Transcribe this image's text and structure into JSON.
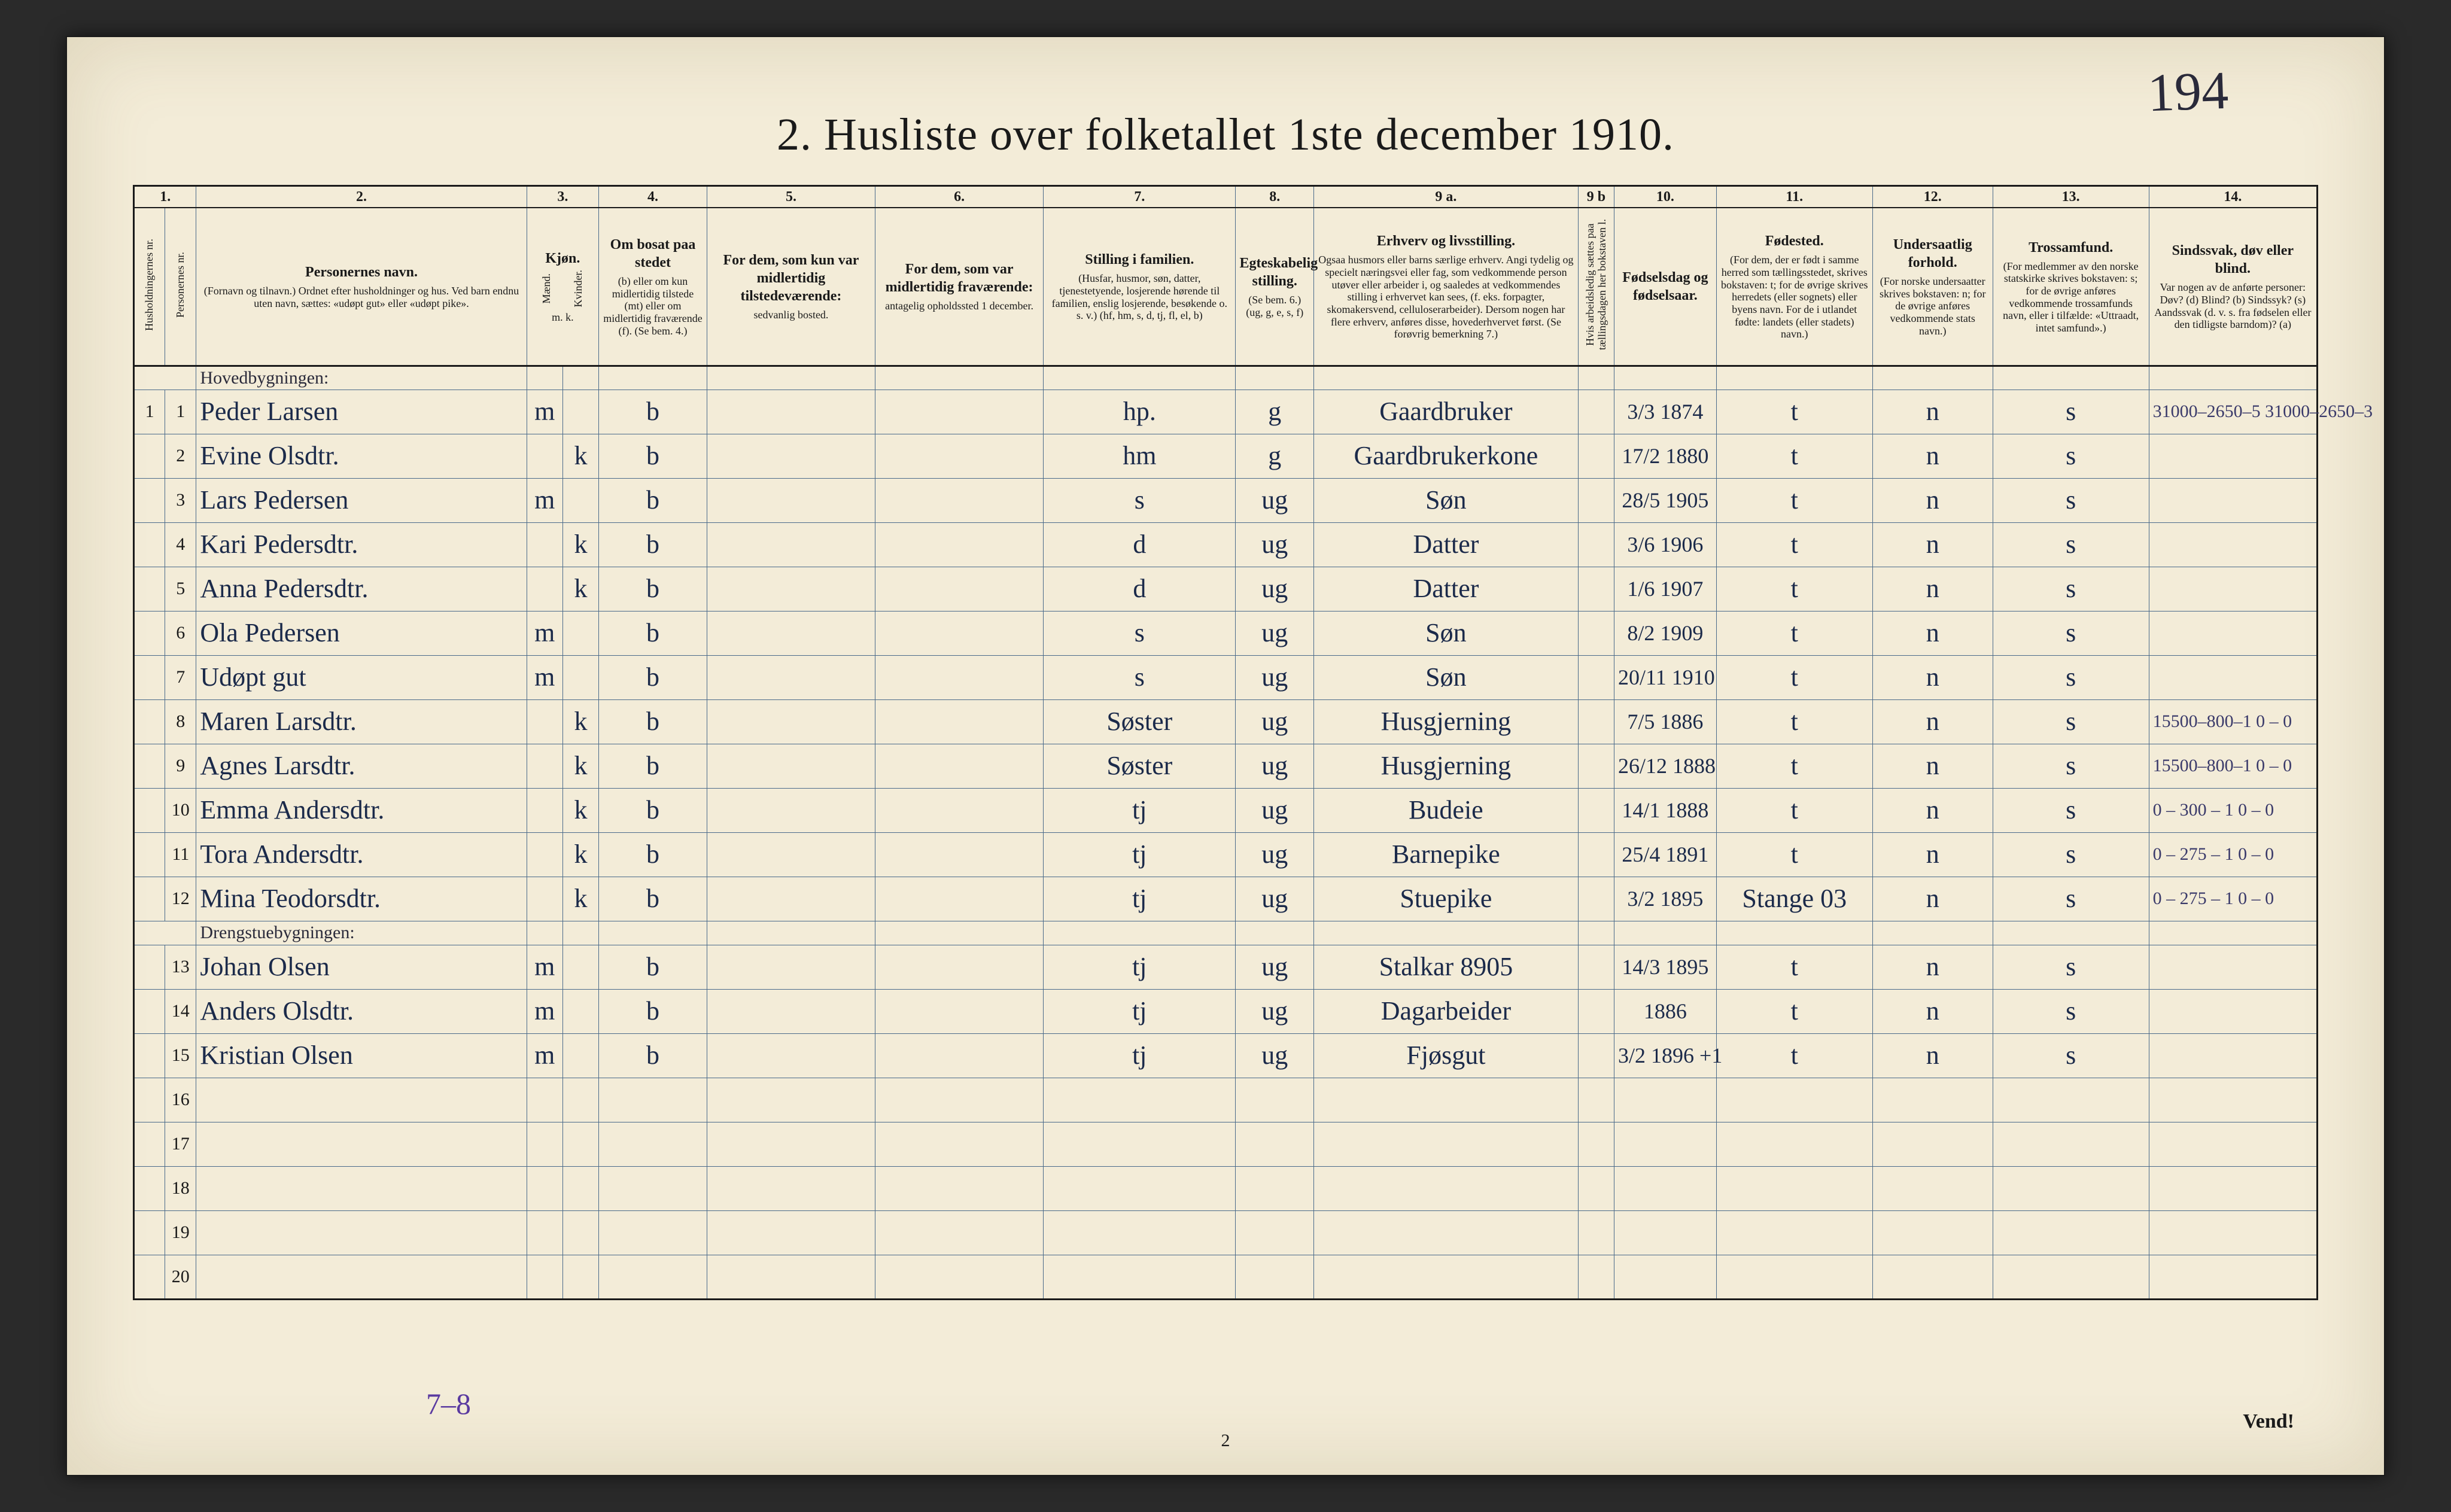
{
  "page": {
    "title": "2.  Husliste over folketallet 1ste december 1910.",
    "handwritten_page_number": "194",
    "footer_page_number": "2",
    "footer_right": "Vend!",
    "bottom_margin_note": "7–8"
  },
  "colors": {
    "paper_bg": "#f3ecd8",
    "rule_line": "#4a6a8a",
    "ink_print": "#1a1a1a",
    "ink_hand": "#1b2a4a",
    "pencil": "#3a3a6a",
    "purple_pencil": "#5a3aa0"
  },
  "columns": {
    "numbers": [
      "1.",
      "2.",
      "3.",
      "4.",
      "5.",
      "6.",
      "7.",
      "8.",
      "9 a.",
      "9 b",
      "10.",
      "11.",
      "12.",
      "13.",
      "14."
    ],
    "headers": {
      "c1a": "Husholdningernes nr.",
      "c1b": "Personernes nr.",
      "c2_main": "Personernes navn.",
      "c2_sub": "(Fornavn og tilnavn.)\nOrdnet efter husholdninger og hus.\nVed barn endnu uten navn, sættes: «udøpt gut» eller «udøpt pike».",
      "c3_main": "Kjøn.",
      "c3_sub_m": "Mænd.",
      "c3_sub_k": "Kvinder.",
      "c3_foot": "m.  k.",
      "c4_main": "Om bosat paa stedet",
      "c4_sub": "(b) eller om kun midlertidig tilstede (mt) eller om midlertidig fraværende (f). (Se bem. 4.)",
      "c5_main": "For dem, som kun var midlertidig tilstedeværende:",
      "c5_sub": "sedvanlig bosted.",
      "c6_main": "For dem, som var midlertidig fraværende:",
      "c6_sub": "antagelig opholdssted 1 december.",
      "c7_main": "Stilling i familien.",
      "c7_sub": "(Husfar, husmor, søn, datter, tjenestetyende, losjerende hørende til familien, enslig losjerende, besøkende o. s. v.) (hf, hm, s, d, tj, fl, el, b)",
      "c8_main": "Egteskabelig stilling.",
      "c8_sub": "(Se bem. 6.) (ug, g, e, s, f)",
      "c9a_main": "Erhverv og livsstilling.",
      "c9a_sub": "Ogsaa husmors eller barns særlige erhverv. Angi tydelig og specielt næringsvei eller fag, som vedkommende person utøver eller arbeider i, og saaledes at vedkommendes stilling i erhvervet kan sees, (f. eks. forpagter, skomakersvend, celluloserarbeider). Dersom nogen har flere erhverv, anføres disse, hovederhvervet først. (Se forøvrig bemerkning 7.)",
      "c9b_main": "Hvis arbeidsledig sættes paa tællingsdagen her bokstaven l.",
      "c10_main": "Fødselsdag og fødselsaar.",
      "c11_main": "Fødested.",
      "c11_sub": "(For dem, der er født i samme herred som tællingsstedet, skrives bokstaven: t; for de øvrige skrives herredets (eller sognets) eller byens navn. For de i utlandet fødte: landets (eller stadets) navn.)",
      "c12_main": "Undersaatlig forhold.",
      "c12_sub": "(For norske undersaatter skrives bokstaven: n; for de øvrige anføres vedkommende stats navn.)",
      "c13_main": "Trossamfund.",
      "c13_sub": "(For medlemmer av den norske statskirke skrives bokstaven: s; for de øvrige anføres vedkommende trossamfunds navn, eller i tilfælde: «Uttraadt, intet samfund».)",
      "c14_main": "Sindssvak, døv eller blind.",
      "c14_sub": "Var nogen av de anførte personer:\nDøv?  (d)\nBlind?  (b)\nSindssyk? (s)\nAandssvak (d. v. s. fra fødselen eller den tidligste barndom)? (a)"
    }
  },
  "heading_row_label": "Hovedbygningen:",
  "heading_row_label2": "Drengstuebygningen:",
  "rows": [
    {
      "hnr": "1",
      "pnr": "1",
      "name": "Peder Larsen",
      "m": "m",
      "k": "",
      "bosat": "b",
      "c5": "",
      "c6": "",
      "stilling": "hp.",
      "egte": "g",
      "erhverv": "Gaardbruker",
      "c9b": "",
      "fdato": "3/3 1874",
      "fsted": "t",
      "under": "n",
      "tros": "s",
      "c14": "",
      "rnote": "31000–2650–5\n31000–2650–3"
    },
    {
      "hnr": "",
      "pnr": "2",
      "name": "Evine Olsdtr.",
      "m": "",
      "k": "k",
      "bosat": "b",
      "c5": "",
      "c6": "",
      "stilling": "hm",
      "egte": "g",
      "erhverv": "Gaardbrukerkone",
      "c9b": "",
      "fdato": "17/2 1880",
      "fsted": "t",
      "under": "n",
      "tros": "s",
      "c14": "",
      "rnote": ""
    },
    {
      "hnr": "",
      "pnr": "3",
      "name": "Lars Pedersen",
      "m": "m",
      "k": "",
      "bosat": "b",
      "c5": "",
      "c6": "",
      "stilling": "s",
      "egte": "ug",
      "erhverv": "Søn",
      "c9b": "",
      "fdato": "28/5 1905",
      "fsted": "t",
      "under": "n",
      "tros": "s",
      "c14": "",
      "rnote": ""
    },
    {
      "hnr": "",
      "pnr": "4",
      "name": "Kari Pedersdtr.",
      "m": "",
      "k": "k",
      "bosat": "b",
      "c5": "",
      "c6": "",
      "stilling": "d",
      "egte": "ug",
      "erhverv": "Datter",
      "c9b": "",
      "fdato": "3/6 1906",
      "fsted": "t",
      "under": "n",
      "tros": "s",
      "c14": "",
      "rnote": ""
    },
    {
      "hnr": "",
      "pnr": "5",
      "name": "Anna Pedersdtr.",
      "m": "",
      "k": "k",
      "bosat": "b",
      "c5": "",
      "c6": "",
      "stilling": "d",
      "egte": "ug",
      "erhverv": "Datter",
      "c9b": "",
      "fdato": "1/6 1907",
      "fsted": "t",
      "under": "n",
      "tros": "s",
      "c14": "",
      "rnote": ""
    },
    {
      "hnr": "",
      "pnr": "6",
      "name": "Ola Pedersen",
      "m": "m",
      "k": "",
      "bosat": "b",
      "c5": "",
      "c6": "",
      "stilling": "s",
      "egte": "ug",
      "erhverv": "Søn",
      "c9b": "",
      "fdato": "8/2 1909",
      "fsted": "t",
      "under": "n",
      "tros": "s",
      "c14": "",
      "rnote": ""
    },
    {
      "hnr": "",
      "pnr": "7",
      "name": "Udøpt gut",
      "m": "m",
      "k": "",
      "bosat": "b",
      "c5": "",
      "c6": "",
      "stilling": "s",
      "egte": "ug",
      "erhverv": "Søn",
      "c9b": "",
      "fdato": "20/11 1910",
      "fsted": "t",
      "under": "n",
      "tros": "s",
      "c14": "",
      "rnote": ""
    },
    {
      "hnr": "",
      "pnr": "8",
      "name": "Maren Larsdtr.",
      "m": "",
      "k": "k",
      "bosat": "b",
      "c5": "",
      "c6": "",
      "stilling": "Søster",
      "egte": "ug",
      "erhverv": "Husgjerning",
      "c9b": "",
      "fdato": "7/5 1886",
      "fsted": "t",
      "under": "n",
      "tros": "s",
      "c14": "",
      "rnote": "15500–800–1\n0 – 0"
    },
    {
      "hnr": "",
      "pnr": "9",
      "name": "Agnes Larsdtr.",
      "m": "",
      "k": "k",
      "bosat": "b",
      "c5": "",
      "c6": "",
      "stilling": "Søster",
      "egte": "ug",
      "erhverv": "Husgjerning",
      "c9b": "",
      "fdato": "26/12 1888",
      "fsted": "t",
      "under": "n",
      "tros": "s",
      "c14": "",
      "rnote": "15500–800–1\n0 – 0"
    },
    {
      "hnr": "",
      "pnr": "10",
      "name": "Emma Andersdtr.",
      "m": "",
      "k": "k",
      "bosat": "b",
      "c5": "",
      "c6": "",
      "stilling": "tj",
      "egte": "ug",
      "erhverv": "Budeie",
      "c9b": "",
      "fdato": "14/1 1888",
      "fsted": "t",
      "under": "n",
      "tros": "s",
      "c14": "",
      "rnote": "0 – 300 – 1\n0 – 0"
    },
    {
      "hnr": "",
      "pnr": "11",
      "name": "Tora Andersdtr.",
      "m": "",
      "k": "k",
      "bosat": "b",
      "c5": "",
      "c6": "",
      "stilling": "tj",
      "egte": "ug",
      "erhverv": "Barnepike",
      "c9b": "",
      "fdato": "25/4 1891",
      "fsted": "t",
      "under": "n",
      "tros": "s",
      "c14": "",
      "rnote": "0 – 275 – 1\n0 – 0"
    },
    {
      "hnr": "",
      "pnr": "12",
      "name": "Mina Teodorsdtr.",
      "m": "",
      "k": "k",
      "bosat": "b",
      "c5": "",
      "c6": "",
      "stilling": "tj",
      "egte": "ug",
      "erhverv": "Stuepike",
      "c9b": "",
      "fdato": "3/2 1895",
      "fsted": "Stange 03",
      "under": "n",
      "tros": "s",
      "c14": "",
      "rnote": "0 – 275 – 1\n0 – 0"
    },
    {
      "hnr": "",
      "pnr": "13",
      "name": "Johan Olsen",
      "m": "m",
      "k": "",
      "bosat": "b",
      "c5": "",
      "c6": "",
      "stilling": "tj",
      "egte": "ug",
      "erhverv": "Stalkar  8905",
      "c9b": "",
      "fdato": "14/3 1895",
      "fsted": "t",
      "under": "n",
      "tros": "s",
      "c14": "",
      "rnote": ""
    },
    {
      "hnr": "",
      "pnr": "14",
      "name": "Anders Olsdtr.",
      "m": "m",
      "k": "",
      "bosat": "b",
      "c5": "",
      "c6": "",
      "stilling": "tj",
      "egte": "ug",
      "erhverv": "Dagarbeider",
      "c9b": "",
      "fdato": "1886",
      "fsted": "t",
      "under": "n",
      "tros": "s",
      "c14": "",
      "rnote": ""
    },
    {
      "hnr": "",
      "pnr": "15",
      "name": "Kristian Olsen",
      "m": "m",
      "k": "",
      "bosat": "b",
      "c5": "",
      "c6": "",
      "stilling": "tj",
      "egte": "ug",
      "erhverv": "Fjøsgut",
      "c9b": "",
      "fdato": "3/2 1896 +1",
      "fsted": "t",
      "under": "n",
      "tros": "s",
      "c14": "",
      "rnote": ""
    }
  ],
  "empty_row_numbers": [
    "16",
    "17",
    "18",
    "19",
    "20"
  ]
}
